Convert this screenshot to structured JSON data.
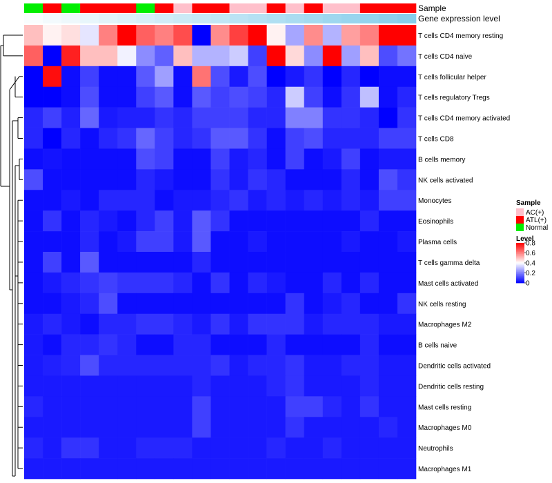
{
  "chart_data": {
    "type": "heatmap",
    "title": "",
    "annotation_rows": [
      {
        "name": "Sample",
        "values": [
          "Normal",
          "ATL(+)",
          "Normal",
          "ATL(+)",
          "ATL(+)",
          "ATL(+)",
          "Normal",
          "ATL(+)",
          "AC(+)",
          "ATL(+)",
          "ATL(+)",
          "AC(+)",
          "AC(+)",
          "ATL(+)",
          "AC(+)",
          "ATL(+)",
          "AC(+)",
          "AC(+)",
          "ATL(+)",
          "ATL(+)",
          "ATL(+)"
        ]
      },
      {
        "name": "Gene expression level",
        "values": [
          0.05,
          0.1,
          0.14,
          0.19,
          0.24,
          0.28,
          0.33,
          0.38,
          0.43,
          0.47,
          0.52,
          0.57,
          0.62,
          0.66,
          0.71,
          0.76,
          0.81,
          0.85,
          0.9,
          0.95,
          1.0
        ]
      }
    ],
    "rows": [
      "T cells CD4 memory resting",
      "T cells CD4 naive",
      "T cells follicular helper",
      "T cells regulatory  Tregs",
      "T cells CD4 memory activated",
      "T cells CD8",
      "B cells memory",
      "NK cells activated",
      "Monocytes",
      "Eosinophils",
      "Plasma cells",
      "T cells gamma delta",
      "Mast cells activated",
      "NK cells resting",
      "Macrophages M2",
      "B cells naive",
      "Dendritic cells activated",
      "Dendritic cells resting",
      "Mast cells resting",
      "Macrophages M0",
      "Neutrophils",
      "Macrophages M1"
    ],
    "matrix": [
      [
        0.5,
        0.42,
        0.45,
        0.36,
        0.6,
        0.8,
        0.65,
        0.6,
        0.68,
        0.0,
        0.58,
        0.7,
        0.8,
        0.42,
        0.26,
        0.58,
        0.28,
        0.55,
        0.6,
        0.8,
        0.8
      ],
      [
        0.65,
        0.0,
        0.75,
        0.5,
        0.5,
        0.38,
        0.22,
        0.15,
        0.5,
        0.28,
        0.28,
        0.32,
        0.1,
        0.8,
        0.46,
        0.22,
        0.8,
        0.25,
        0.5,
        0.12,
        0.18
      ],
      [
        0.0,
        0.78,
        0.02,
        0.1,
        0.02,
        0.02,
        0.14,
        0.25,
        0.02,
        0.62,
        0.12,
        0.04,
        0.12,
        0.0,
        0.04,
        0.08,
        0.0,
        0.06,
        0.0,
        0.02,
        0.02
      ],
      [
        0.0,
        0.0,
        0.02,
        0.12,
        0.02,
        0.02,
        0.1,
        0.14,
        0.02,
        0.14,
        0.1,
        0.12,
        0.1,
        0.06,
        0.32,
        0.1,
        0.02,
        0.08,
        0.3,
        0.02,
        0.06
      ],
      [
        0.06,
        0.1,
        0.05,
        0.16,
        0.04,
        0.05,
        0.05,
        0.08,
        0.06,
        0.1,
        0.1,
        0.1,
        0.06,
        0.06,
        0.2,
        0.2,
        0.08,
        0.08,
        0.06,
        0.0,
        0.08
      ],
      [
        0.06,
        0.0,
        0.06,
        0.02,
        0.06,
        0.08,
        0.16,
        0.1,
        0.06,
        0.08,
        0.14,
        0.14,
        0.08,
        0.02,
        0.1,
        0.12,
        0.06,
        0.06,
        0.06,
        0.1,
        0.1
      ],
      [
        0.02,
        0.03,
        0.02,
        0.02,
        0.02,
        0.02,
        0.12,
        0.1,
        0.02,
        0.02,
        0.1,
        0.04,
        0.06,
        0.02,
        0.1,
        0.02,
        0.04,
        0.1,
        0.02,
        0.04,
        0.04
      ],
      [
        0.12,
        0.02,
        0.02,
        0.02,
        0.02,
        0.02,
        0.06,
        0.04,
        0.02,
        0.02,
        0.08,
        0.04,
        0.08,
        0.06,
        0.02,
        0.02,
        0.02,
        0.06,
        0.02,
        0.12,
        0.08
      ],
      [
        0.02,
        0.02,
        0.04,
        0.02,
        0.06,
        0.06,
        0.06,
        0.02,
        0.04,
        0.04,
        0.06,
        0.08,
        0.04,
        0.06,
        0.04,
        0.06,
        0.04,
        0.06,
        0.04,
        0.1,
        0.1
      ],
      [
        0.02,
        0.08,
        0.02,
        0.06,
        0.04,
        0.02,
        0.06,
        0.1,
        0.04,
        0.14,
        0.08,
        0.02,
        0.02,
        0.02,
        0.02,
        0.02,
        0.02,
        0.02,
        0.06,
        0.02,
        0.02
      ],
      [
        0.02,
        0.02,
        0.02,
        0.06,
        0.02,
        0.04,
        0.1,
        0.1,
        0.04,
        0.14,
        0.02,
        0.02,
        0.04,
        0.02,
        0.02,
        0.02,
        0.02,
        0.04,
        0.02,
        0.02,
        0.04
      ],
      [
        0.02,
        0.1,
        0.02,
        0.14,
        0.02,
        0.02,
        0.02,
        0.02,
        0.02,
        0.06,
        0.02,
        0.02,
        0.02,
        0.02,
        0.02,
        0.02,
        0.02,
        0.02,
        0.02,
        0.02,
        0.02
      ],
      [
        0.02,
        0.04,
        0.06,
        0.08,
        0.1,
        0.08,
        0.08,
        0.08,
        0.06,
        0.02,
        0.08,
        0.02,
        0.06,
        0.04,
        0.02,
        0.02,
        0.06,
        0.02,
        0.06,
        0.02,
        0.02
      ],
      [
        0.02,
        0.02,
        0.04,
        0.06,
        0.12,
        0.02,
        0.02,
        0.02,
        0.02,
        0.02,
        0.02,
        0.02,
        0.02,
        0.02,
        0.08,
        0.02,
        0.04,
        0.06,
        0.02,
        0.02,
        0.08
      ],
      [
        0.04,
        0.06,
        0.04,
        0.02,
        0.06,
        0.06,
        0.08,
        0.08,
        0.06,
        0.04,
        0.08,
        0.04,
        0.08,
        0.08,
        0.08,
        0.04,
        0.06,
        0.06,
        0.06,
        0.04,
        0.04
      ],
      [
        0.04,
        0.02,
        0.06,
        0.06,
        0.08,
        0.06,
        0.02,
        0.02,
        0.06,
        0.06,
        0.02,
        0.02,
        0.02,
        0.06,
        0.02,
        0.02,
        0.02,
        0.02,
        0.06,
        0.02,
        0.02
      ],
      [
        0.04,
        0.05,
        0.06,
        0.12,
        0.06,
        0.06,
        0.06,
        0.06,
        0.06,
        0.06,
        0.08,
        0.04,
        0.06,
        0.06,
        0.08,
        0.04,
        0.04,
        0.06,
        0.06,
        0.04,
        0.04
      ],
      [
        0.04,
        0.04,
        0.04,
        0.04,
        0.04,
        0.04,
        0.04,
        0.04,
        0.04,
        0.06,
        0.04,
        0.04,
        0.04,
        0.06,
        0.08,
        0.04,
        0.04,
        0.04,
        0.06,
        0.04,
        0.04
      ],
      [
        0.06,
        0.04,
        0.04,
        0.04,
        0.04,
        0.04,
        0.04,
        0.04,
        0.04,
        0.1,
        0.04,
        0.04,
        0.04,
        0.04,
        0.1,
        0.1,
        0.06,
        0.04,
        0.08,
        0.04,
        0.04
      ],
      [
        0.04,
        0.04,
        0.04,
        0.04,
        0.04,
        0.04,
        0.04,
        0.04,
        0.04,
        0.1,
        0.04,
        0.04,
        0.04,
        0.04,
        0.08,
        0.04,
        0.04,
        0.04,
        0.04,
        0.06,
        0.04
      ],
      [
        0.06,
        0.04,
        0.08,
        0.08,
        0.04,
        0.04,
        0.06,
        0.06,
        0.06,
        0.04,
        0.04,
        0.04,
        0.04,
        0.06,
        0.04,
        0.04,
        0.06,
        0.04,
        0.04,
        0.04,
        0.04
      ],
      [
        0.04,
        0.04,
        0.04,
        0.04,
        0.04,
        0.04,
        0.04,
        0.04,
        0.04,
        0.04,
        0.04,
        0.04,
        0.04,
        0.04,
        0.04,
        0.04,
        0.04,
        0.04,
        0.04,
        0.04,
        0.04
      ]
    ],
    "legend": {
      "sample_title": "Sample",
      "sample_items": [
        {
          "label": "AC(+)",
          "color": "#ffc0cb"
        },
        {
          "label": "ATL(+)",
          "color": "#ff0000"
        },
        {
          "label": "Normal",
          "color": "#00ee00"
        }
      ],
      "level_title": "Level",
      "level_ticks": [
        "0.8",
        "0.6",
        "0.4",
        "0.2",
        "0"
      ],
      "level_range": [
        0,
        0.8
      ]
    },
    "colors": {
      "low": "#0000ff",
      "mid": "#ffffff",
      "high": "#ff0000",
      "gene_low": "#ffffff",
      "gene_high": "#87ceeb"
    }
  }
}
